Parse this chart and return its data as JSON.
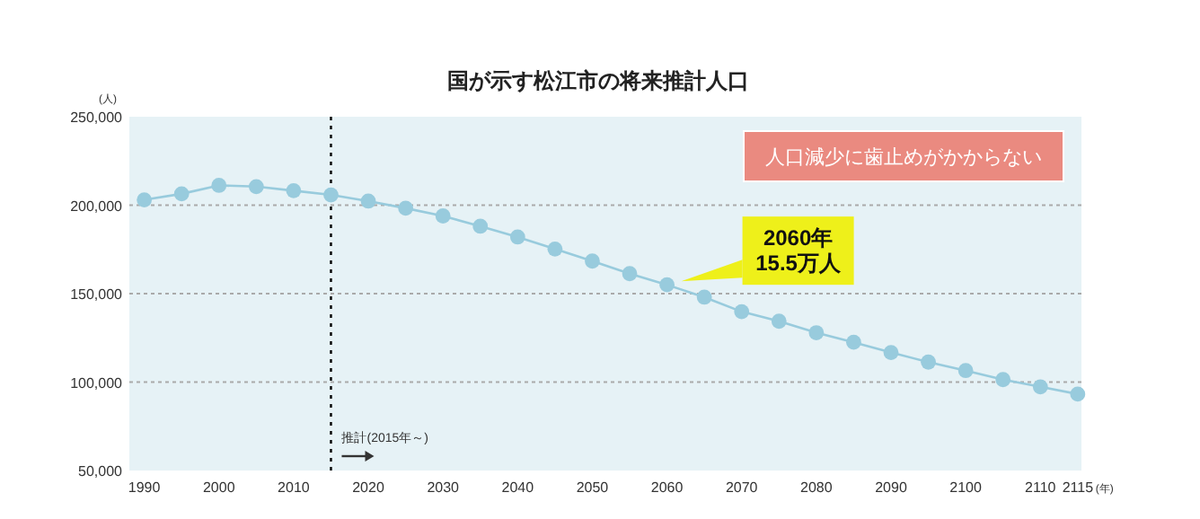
{
  "chart_data": {
    "type": "line",
    "title": "国が示す松江市の将来推計人口",
    "xlabel": "(年)",
    "ylabel": "(人)",
    "x": [
      1990,
      1995,
      2000,
      2005,
      2010,
      2015,
      2020,
      2025,
      2030,
      2035,
      2040,
      2045,
      2050,
      2055,
      2060,
      2065,
      2070,
      2075,
      2080,
      2085,
      2090,
      2095,
      2100,
      2105,
      2110,
      2115
    ],
    "series": [
      {
        "color": "#98cbdd",
        "values": [
          203000,
          206400,
          211200,
          210500,
          208200,
          205800,
          202300,
          198300,
          193900,
          188100,
          182000,
          175200,
          168400,
          161300,
          155000,
          148000,
          139800,
          134400,
          127900,
          122500,
          116700,
          111300,
          106500,
          101400,
          97300,
          93200
        ]
      }
    ],
    "xlim": [
      1988,
      2115.5
    ],
    "ylim": [
      50000,
      250000
    ],
    "xticks": [
      1990,
      2000,
      2010,
      2020,
      2030,
      2040,
      2050,
      2060,
      2070,
      2080,
      2090,
      2100,
      2110,
      2115
    ],
    "yticks": [
      {
        "value": 50000,
        "label": "50,000"
      },
      {
        "value": 100000,
        "label": "100,000"
      },
      {
        "value": 150000,
        "label": "150,000"
      },
      {
        "value": 200000,
        "label": "200,000"
      },
      {
        "value": 250000,
        "label": "250,000"
      }
    ],
    "grid": "y",
    "marker": "circle",
    "ref_lines": [
      {
        "axis": "x",
        "value": 2015,
        "label": "推計(2015年～)",
        "color": "#000000",
        "line_style": "dotted"
      }
    ],
    "annotations": [
      "人口減少に歯止めがかからない",
      {
        "text": "2060年\n15.5万人",
        "x": 2060,
        "y": 155000
      }
    ]
  }
}
